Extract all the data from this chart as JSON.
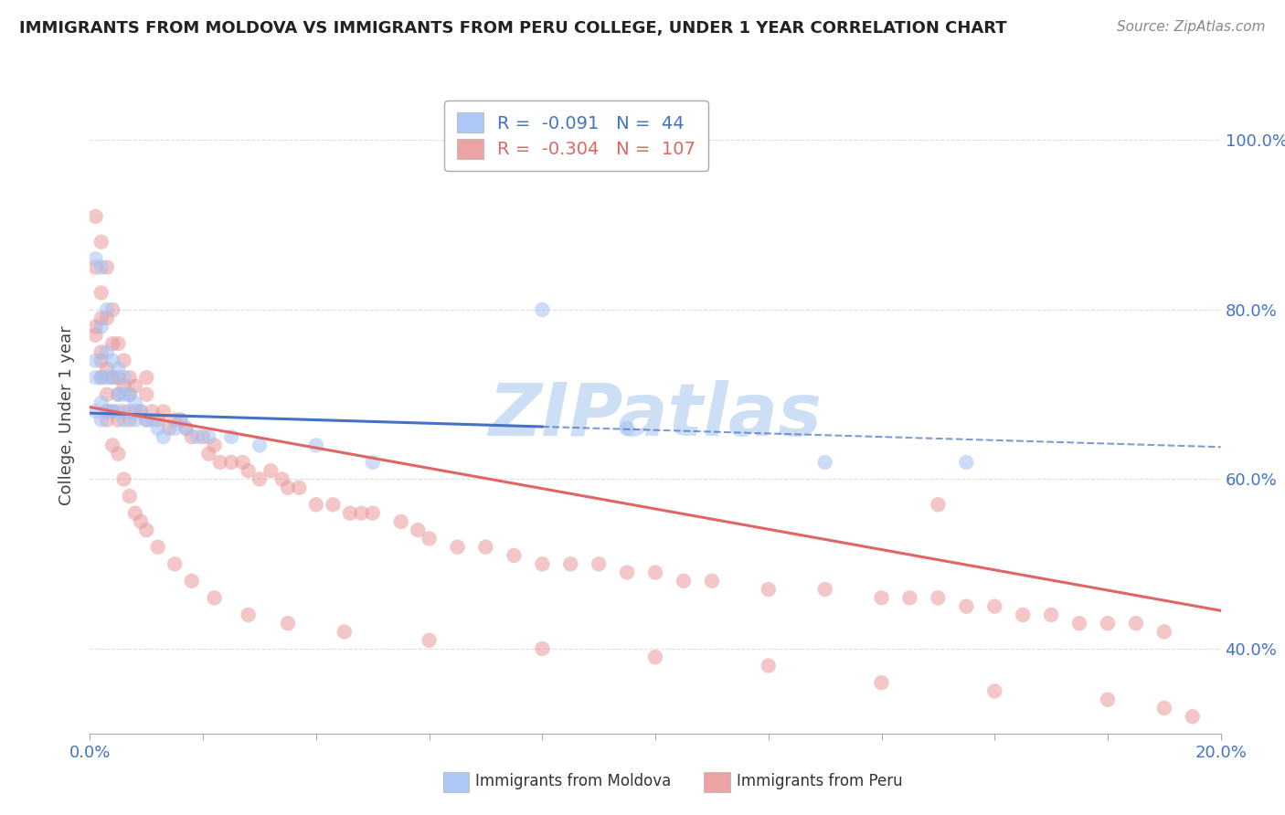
{
  "title": "IMMIGRANTS FROM MOLDOVA VS IMMIGRANTS FROM PERU COLLEGE, UNDER 1 YEAR CORRELATION CHART",
  "source": "Source: ZipAtlas.com",
  "ylabel": "College, Under 1 year",
  "moldova_R": -0.091,
  "moldova_N": 44,
  "peru_R": -0.304,
  "peru_N": 107,
  "color_moldova_fill": "#a4c2f4",
  "color_peru_fill": "#ea9999",
  "color_line_moldova": "#4472c4",
  "color_line_peru": "#e06666",
  "watermark": "ZIPatlas",
  "watermark_color": "#ccdff5",
  "xlim": [
    0.0,
    0.2
  ],
  "ylim": [
    0.3,
    1.05
  ],
  "yticks": [
    0.4,
    0.6,
    0.8,
    1.0
  ],
  "ytick_labels": [
    "40.0%",
    "60.0%",
    "80.0%",
    "100.0%"
  ],
  "grid_color": "#dddddd",
  "tick_label_color": "#4472c4",
  "moldova_line_x0": 0.0,
  "moldova_line_y0": 0.678,
  "moldova_line_x1": 0.2,
  "moldova_line_y1": 0.638,
  "moldova_line_solid_end": 0.08,
  "peru_line_x0": 0.0,
  "peru_line_y0": 0.685,
  "peru_line_x1": 0.2,
  "peru_line_y1": 0.445,
  "moldova_scatter_x": [
    0.001,
    0.001,
    0.001,
    0.001,
    0.002,
    0.002,
    0.002,
    0.002,
    0.002,
    0.003,
    0.003,
    0.003,
    0.003,
    0.004,
    0.004,
    0.004,
    0.005,
    0.005,
    0.005,
    0.006,
    0.006,
    0.006,
    0.007,
    0.007,
    0.008,
    0.008,
    0.009,
    0.01,
    0.011,
    0.012,
    0.013,
    0.015,
    0.016,
    0.017,
    0.019,
    0.021,
    0.025,
    0.03,
    0.04,
    0.05,
    0.08,
    0.095,
    0.13,
    0.155
  ],
  "moldova_scatter_y": [
    0.86,
    0.74,
    0.72,
    0.68,
    0.85,
    0.78,
    0.72,
    0.69,
    0.67,
    0.8,
    0.75,
    0.72,
    0.68,
    0.74,
    0.72,
    0.68,
    0.73,
    0.7,
    0.68,
    0.72,
    0.7,
    0.67,
    0.7,
    0.68,
    0.69,
    0.67,
    0.68,
    0.67,
    0.67,
    0.66,
    0.65,
    0.66,
    0.67,
    0.66,
    0.65,
    0.65,
    0.65,
    0.64,
    0.64,
    0.62,
    0.8,
    0.66,
    0.62,
    0.62
  ],
  "peru_scatter_x": [
    0.001,
    0.001,
    0.001,
    0.002,
    0.002,
    0.002,
    0.002,
    0.002,
    0.003,
    0.003,
    0.003,
    0.003,
    0.003,
    0.004,
    0.004,
    0.004,
    0.004,
    0.005,
    0.005,
    0.005,
    0.005,
    0.006,
    0.006,
    0.006,
    0.007,
    0.007,
    0.007,
    0.008,
    0.008,
    0.009,
    0.01,
    0.01,
    0.01,
    0.011,
    0.012,
    0.013,
    0.014,
    0.015,
    0.016,
    0.017,
    0.018,
    0.02,
    0.021,
    0.022,
    0.023,
    0.025,
    0.027,
    0.028,
    0.03,
    0.032,
    0.034,
    0.035,
    0.037,
    0.04,
    0.043,
    0.046,
    0.048,
    0.05,
    0.055,
    0.058,
    0.06,
    0.065,
    0.07,
    0.075,
    0.08,
    0.085,
    0.09,
    0.095,
    0.1,
    0.105,
    0.11,
    0.12,
    0.13,
    0.14,
    0.145,
    0.15,
    0.155,
    0.16,
    0.165,
    0.17,
    0.175,
    0.18,
    0.185,
    0.19,
    0.001,
    0.002,
    0.003,
    0.004,
    0.005,
    0.006,
    0.007,
    0.008,
    0.009,
    0.01,
    0.012,
    0.015,
    0.018,
    0.022,
    0.028,
    0.035,
    0.045,
    0.06,
    0.08,
    0.1,
    0.12,
    0.14,
    0.16,
    0.18,
    0.19,
    0.195,
    0.15
  ],
  "peru_scatter_y": [
    0.91,
    0.85,
    0.78,
    0.88,
    0.82,
    0.79,
    0.75,
    0.72,
    0.85,
    0.79,
    0.73,
    0.7,
    0.67,
    0.8,
    0.76,
    0.72,
    0.68,
    0.76,
    0.72,
    0.7,
    0.67,
    0.74,
    0.71,
    0.68,
    0.72,
    0.7,
    0.67,
    0.71,
    0.68,
    0.68,
    0.72,
    0.7,
    0.67,
    0.68,
    0.67,
    0.68,
    0.66,
    0.67,
    0.67,
    0.66,
    0.65,
    0.65,
    0.63,
    0.64,
    0.62,
    0.62,
    0.62,
    0.61,
    0.6,
    0.61,
    0.6,
    0.59,
    0.59,
    0.57,
    0.57,
    0.56,
    0.56,
    0.56,
    0.55,
    0.54,
    0.53,
    0.52,
    0.52,
    0.51,
    0.5,
    0.5,
    0.5,
    0.49,
    0.49,
    0.48,
    0.48,
    0.47,
    0.47,
    0.46,
    0.46,
    0.46,
    0.45,
    0.45,
    0.44,
    0.44,
    0.43,
    0.43,
    0.43,
    0.42,
    0.77,
    0.74,
    0.68,
    0.64,
    0.63,
    0.6,
    0.58,
    0.56,
    0.55,
    0.54,
    0.52,
    0.5,
    0.48,
    0.46,
    0.44,
    0.43,
    0.42,
    0.41,
    0.4,
    0.39,
    0.38,
    0.36,
    0.35,
    0.34,
    0.33,
    0.32,
    0.57
  ]
}
